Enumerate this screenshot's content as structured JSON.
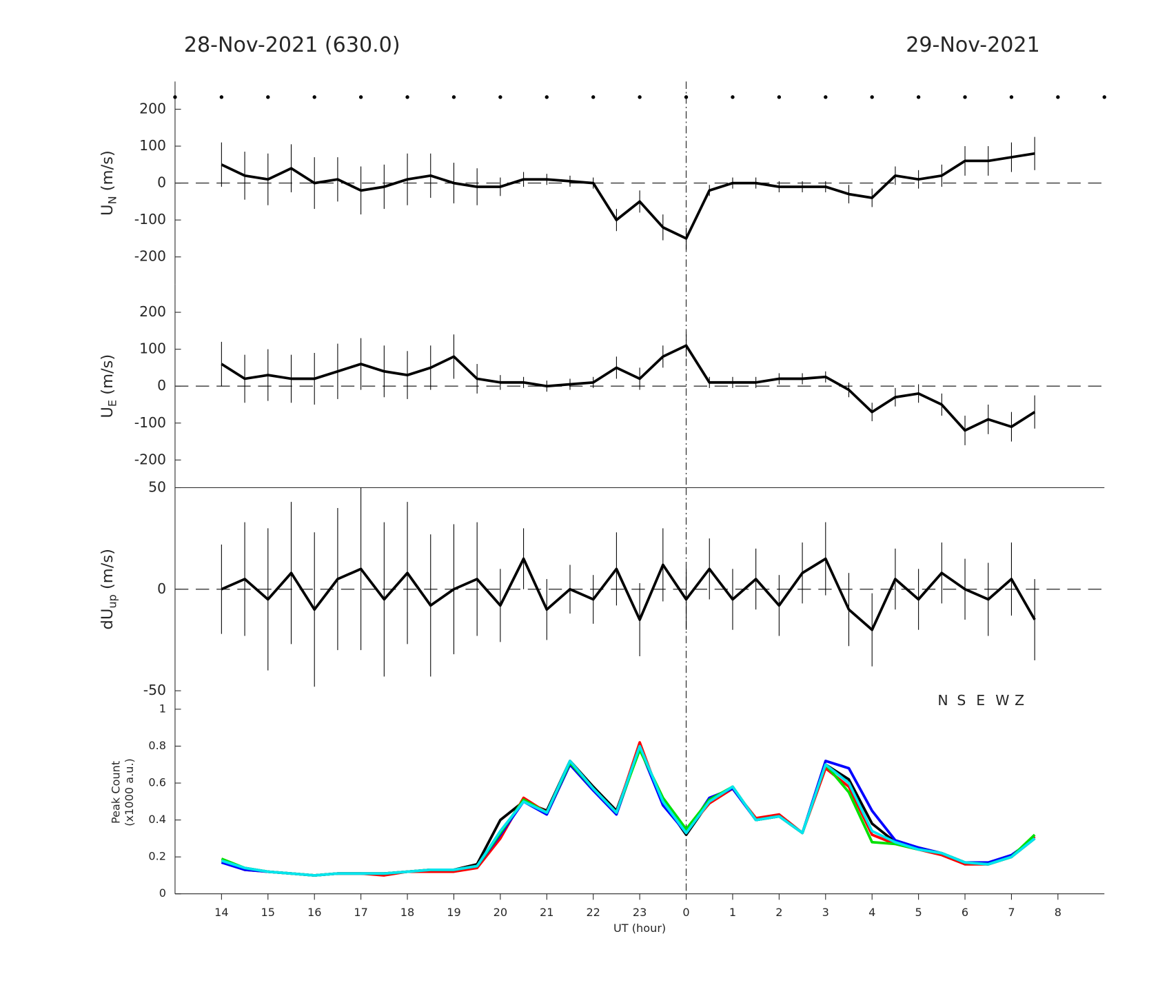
{
  "header": {
    "left": "28-Nov-2021 (630.0)",
    "right": "29-Nov-2021"
  },
  "chart_data": [
    {
      "type": "line",
      "ylabel": {
        "text": "U",
        "sub": "N",
        "unit": " (m/s)"
      },
      "xlim": [
        13,
        33
      ],
      "ylim": [
        -275,
        275
      ],
      "yticks": [
        -200,
        -100,
        0,
        100,
        200
      ],
      "hline": 0,
      "vline": 24,
      "color": "#000000",
      "x": [
        14,
        14.5,
        15,
        15.5,
        16,
        16.5,
        17,
        17.5,
        18,
        18.5,
        19,
        19.5,
        20,
        20.5,
        21,
        21.5,
        22,
        22.5,
        23,
        23.5,
        24,
        24.5,
        25,
        25.5,
        26,
        26.5,
        27,
        27.5,
        28,
        28.5,
        29,
        29.5,
        30,
        30.5,
        31,
        31.5
      ],
      "values": [
        50,
        20,
        10,
        40,
        0,
        10,
        -20,
        -10,
        10,
        20,
        0,
        -10,
        -10,
        10,
        10,
        5,
        0,
        -100,
        -50,
        -120,
        -150,
        -20,
        0,
        0,
        -10,
        -10,
        -10,
        -30,
        -40,
        20,
        10,
        20,
        60,
        60,
        70,
        80
      ],
      "errors": [
        60,
        65,
        70,
        65,
        70,
        60,
        65,
        60,
        70,
        60,
        55,
        50,
        25,
        20,
        15,
        15,
        15,
        30,
        30,
        35,
        30,
        15,
        15,
        15,
        15,
        15,
        15,
        25,
        25,
        25,
        25,
        30,
        40,
        40,
        40,
        45
      ]
    },
    {
      "type": "line",
      "ylabel": {
        "text": "U",
        "sub": "E",
        "unit": " (m/s)"
      },
      "xlim": [
        13,
        33
      ],
      "ylim": [
        -275,
        275
      ],
      "yticks": [
        -200,
        -100,
        0,
        100,
        200
      ],
      "hline": 0,
      "vline": 24,
      "color": "#000000",
      "x": [
        14,
        14.5,
        15,
        15.5,
        16,
        16.5,
        17,
        17.5,
        18,
        18.5,
        19,
        19.5,
        20,
        20.5,
        21,
        21.5,
        22,
        22.5,
        23,
        23.5,
        24,
        24.5,
        25,
        25.5,
        26,
        26.5,
        27,
        27.5,
        28,
        28.5,
        29,
        29.5,
        30,
        30.5,
        31,
        31.5
      ],
      "values": [
        60,
        20,
        30,
        20,
        20,
        40,
        60,
        40,
        30,
        50,
        80,
        20,
        10,
        10,
        0,
        5,
        10,
        50,
        20,
        80,
        110,
        10,
        10,
        10,
        20,
        20,
        25,
        -10,
        -70,
        -30,
        -20,
        -50,
        -120,
        -90,
        -110,
        -70
      ],
      "errors": [
        60,
        65,
        70,
        65,
        70,
        75,
        70,
        70,
        65,
        60,
        60,
        40,
        20,
        15,
        15,
        15,
        15,
        30,
        30,
        30,
        30,
        15,
        15,
        15,
        15,
        15,
        15,
        20,
        25,
        25,
        25,
        30,
        40,
        40,
        40,
        45
      ]
    },
    {
      "type": "line",
      "ylabel": {
        "text": "dU",
        "sub": "up",
        "unit": " (m/s)"
      },
      "xlim": [
        13,
        33
      ],
      "ylim": [
        -50,
        50
      ],
      "yticks": [
        -50,
        0,
        50
      ],
      "hline": 0,
      "vline": 24,
      "color": "#000000",
      "x": [
        14,
        14.5,
        15,
        15.5,
        16,
        16.5,
        17,
        17.5,
        18,
        18.5,
        19,
        19.5,
        20,
        20.5,
        21,
        21.5,
        22,
        22.5,
        23,
        23.5,
        24,
        24.5,
        25,
        25.5,
        26,
        26.5,
        27,
        27.5,
        28,
        28.5,
        29,
        29.5,
        30,
        30.5,
        31,
        31.5
      ],
      "values": [
        0,
        5,
        -5,
        8,
        -10,
        5,
        10,
        -5,
        8,
        -8,
        0,
        5,
        -8,
        15,
        -10,
        0,
        -5,
        10,
        -15,
        12,
        -5,
        10,
        -5,
        5,
        -8,
        8,
        15,
        -10,
        -20,
        5,
        -5,
        8,
        0,
        -5,
        5,
        -15
      ],
      "errors": [
        22,
        28,
        35,
        35,
        38,
        35,
        40,
        38,
        35,
        35,
        32,
        28,
        18,
        15,
        15,
        12,
        12,
        18,
        18,
        18,
        15,
        15,
        15,
        15,
        15,
        15,
        18,
        18,
        18,
        15,
        15,
        15,
        15,
        18,
        18,
        20
      ]
    },
    {
      "type": "line",
      "ylabel": [
        "Peak Count",
        "(x1000 a.u.)"
      ],
      "xlabel": "UT (hour)",
      "xlim": [
        13,
        33
      ],
      "ylim": [
        0,
        1.1
      ],
      "yticks": [
        0,
        0.2,
        0.4,
        0.6,
        0.8,
        1
      ],
      "vline": 24,
      "xticks": [
        14,
        15,
        16,
        17,
        18,
        19,
        20,
        21,
        22,
        23,
        {
          "value": 24,
          "label": "0"
        },
        {
          "value": 25,
          "label": "1"
        },
        {
          "value": 26,
          "label": "2"
        },
        {
          "value": 27,
          "label": "3"
        },
        {
          "value": 28,
          "label": "4"
        },
        {
          "value": 29,
          "label": "5"
        },
        {
          "value": 30,
          "label": "6"
        },
        {
          "value": 31,
          "label": "7"
        },
        {
          "value": 32,
          "label": "8"
        }
      ],
      "x": [
        14,
        14.5,
        15,
        15.5,
        16,
        16.5,
        17,
        17.5,
        18,
        18.5,
        19,
        19.5,
        20,
        20.5,
        21,
        21.5,
        22,
        22.5,
        23,
        23.5,
        24,
        24.5,
        25,
        25.5,
        26,
        26.5,
        27,
        27.5,
        28,
        28.5,
        29,
        29.5,
        30,
        30.5,
        31,
        31.5
      ],
      "series": [
        {
          "name": "N",
          "color": "#000000",
          "values": [
            0.18,
            0.14,
            0.12,
            0.11,
            0.1,
            0.11,
            0.11,
            0.11,
            0.12,
            0.13,
            0.13,
            0.16,
            0.4,
            0.5,
            0.45,
            0.72,
            0.58,
            0.45,
            0.8,
            0.5,
            0.32,
            0.5,
            0.58,
            0.4,
            0.42,
            0.33,
            0.7,
            0.62,
            0.38,
            0.28,
            0.25,
            0.22,
            0.17,
            0.16,
            0.2,
            0.3
          ]
        },
        {
          "name": "S",
          "color": "#ff0000",
          "values": [
            0.18,
            0.13,
            0.12,
            0.11,
            0.1,
            0.11,
            0.11,
            0.1,
            0.12,
            0.12,
            0.12,
            0.14,
            0.3,
            0.52,
            0.44,
            0.7,
            0.57,
            0.44,
            0.82,
            0.48,
            0.34,
            0.49,
            0.57,
            0.41,
            0.43,
            0.33,
            0.68,
            0.58,
            0.32,
            0.27,
            0.24,
            0.21,
            0.16,
            0.16,
            0.2,
            0.31
          ]
        },
        {
          "name": "E",
          "color": "#0000ff",
          "values": [
            0.17,
            0.13,
            0.12,
            0.11,
            0.1,
            0.11,
            0.11,
            0.11,
            0.12,
            0.13,
            0.13,
            0.15,
            0.32,
            0.5,
            0.43,
            0.7,
            0.56,
            0.43,
            0.79,
            0.48,
            0.33,
            0.52,
            0.57,
            0.4,
            0.42,
            0.33,
            0.72,
            0.68,
            0.45,
            0.29,
            0.25,
            0.22,
            0.17,
            0.17,
            0.21,
            0.3
          ]
        },
        {
          "name": "W",
          "color": "#00e000",
          "values": [
            0.19,
            0.14,
            0.12,
            0.11,
            0.1,
            0.11,
            0.11,
            0.11,
            0.12,
            0.13,
            0.13,
            0.15,
            0.33,
            0.51,
            0.44,
            0.71,
            0.57,
            0.44,
            0.78,
            0.52,
            0.35,
            0.51,
            0.58,
            0.4,
            0.42,
            0.33,
            0.7,
            0.55,
            0.28,
            0.27,
            0.24,
            0.22,
            0.17,
            0.16,
            0.2,
            0.32
          ]
        },
        {
          "name": "Z",
          "color": "#00e5ee",
          "values": [
            0.18,
            0.14,
            0.12,
            0.11,
            0.1,
            0.11,
            0.11,
            0.11,
            0.12,
            0.13,
            0.13,
            0.15,
            0.34,
            0.5,
            0.44,
            0.72,
            0.57,
            0.44,
            0.8,
            0.5,
            0.33,
            0.5,
            0.58,
            0.4,
            0.42,
            0.33,
            0.7,
            0.6,
            0.34,
            0.28,
            0.24,
            0.22,
            0.17,
            0.16,
            0.2,
            0.3
          ]
        }
      ]
    }
  ]
}
